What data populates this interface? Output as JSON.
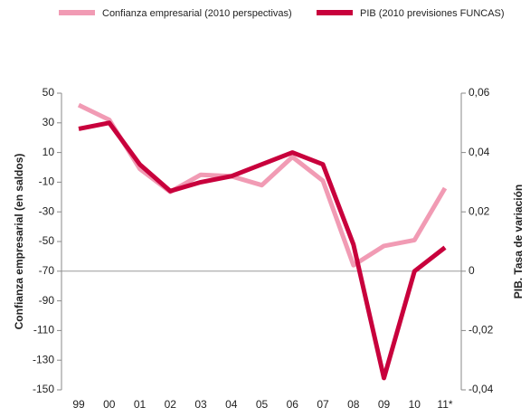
{
  "chart_data": {
    "type": "line",
    "categories": [
      "99",
      "00",
      "01",
      "02",
      "03",
      "04",
      "05",
      "06",
      "07",
      "08",
      "09",
      "10",
      "11*"
    ],
    "y_label": "Confianza empresarial (en saldos)",
    "y2_label": "PIB. Tasa de variación",
    "ylim": [
      -150,
      50
    ],
    "yticks": [
      -150,
      -130,
      -110,
      -90,
      -70,
      -50,
      -30,
      -10,
      10,
      30,
      50
    ],
    "y2lim": [
      -0.04,
      0.06
    ],
    "y2ticks": [
      {
        "value": -0.04,
        "label": "-0,04"
      },
      {
        "value": -0.02,
        "label": "-0,02"
      },
      0,
      {
        "value": 0.02,
        "label": "0,02"
      },
      {
        "value": 0.04,
        "label": "0,04"
      },
      {
        "value": 0.06,
        "label": "0,06"
      }
    ],
    "legend": "top",
    "series": [
      {
        "name": "Confianza empresarial (2010 perspectivas)",
        "color": "#f19bb4",
        "values": [
          42,
          32,
          -1,
          -16.5,
          -5,
          -6,
          -12,
          7,
          -9,
          -66,
          -53,
          -49,
          -14
        ]
      },
      {
        "name": "PIB (2010 previsiones FUNCAS)",
        "color": "#c8003c",
        "axis": "y2",
        "values": [
          0.048,
          0.05,
          0.036,
          0.027,
          0.03,
          0.032,
          0.036,
          0.04,
          0.036,
          0.009,
          -0.036,
          0,
          0.008
        ]
      }
    ]
  }
}
